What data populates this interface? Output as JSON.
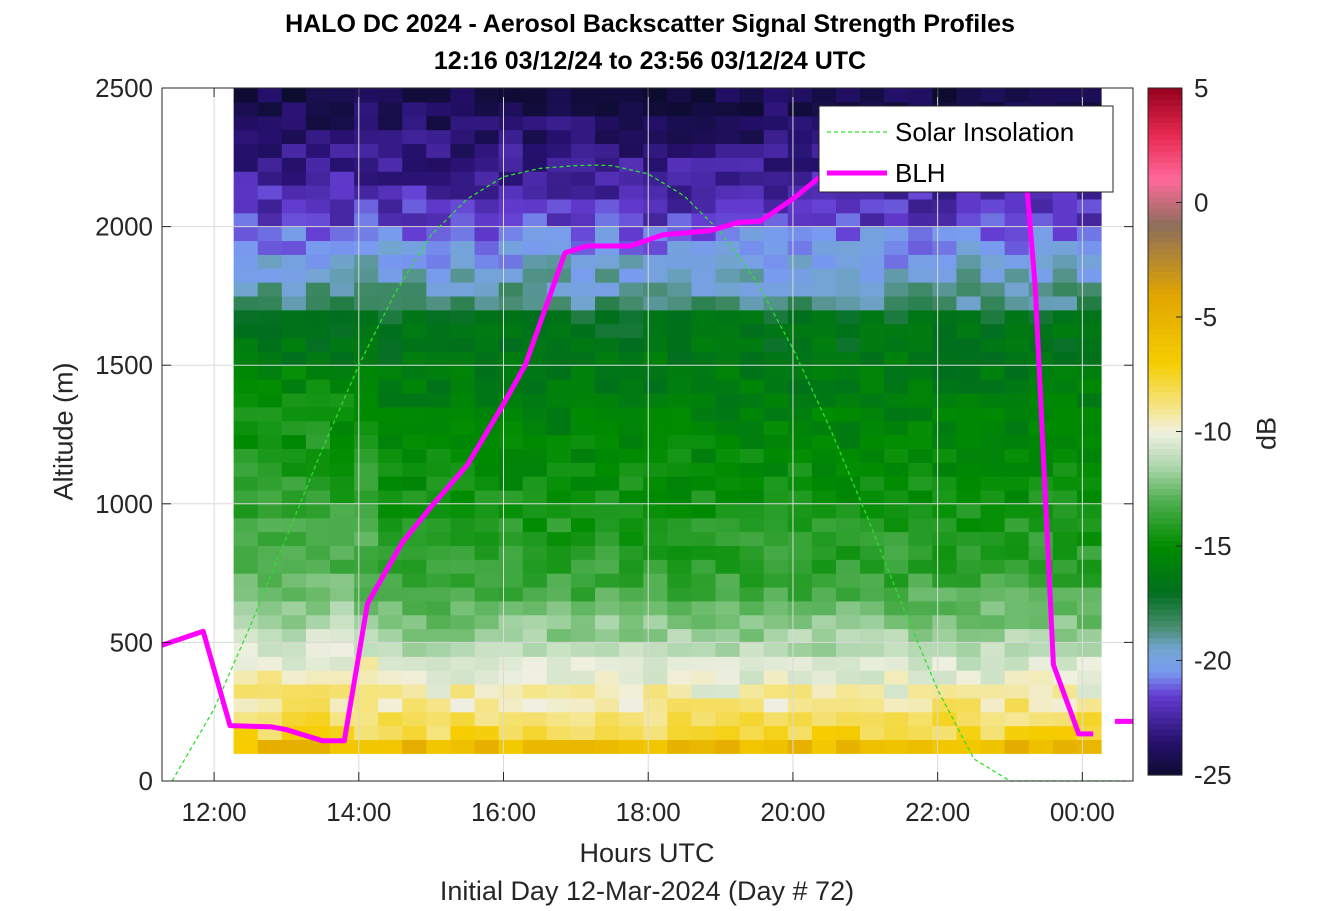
{
  "chart_data": {
    "type": "heatmap",
    "title": "HALO DC 2024 - Aerosol Backscatter Signal Strength Profiles",
    "subtitle": "12:16 03/12/24 to 23:56 03/12/24  UTC",
    "xlabel": "Hours UTC",
    "xlabel2": "Initial Day 12-Mar-2024 (Day # 72)",
    "ylabel": "Altitude (m)",
    "xlim": [
      11.28,
      24.7
    ],
    "ylim": [
      0,
      2500
    ],
    "x_ticks": [
      12,
      14,
      16,
      18,
      20,
      22,
      24
    ],
    "x_tick_labels": [
      "12:00",
      "14:00",
      "16:00",
      "18:00",
      "20:00",
      "22:00",
      "00:00"
    ],
    "y_ticks": [
      0,
      500,
      1000,
      1500,
      2000,
      2500
    ],
    "y_tick_labels": [
      "0",
      "500",
      "1000",
      "1500",
      "2000",
      "2500"
    ],
    "grid": true,
    "legend_position": "top-right",
    "heatmap": {
      "x_start": 12.27,
      "x_end": 23.93,
      "bin_hours": 0.333,
      "altitude_min": 100,
      "altitude_max": 2500,
      "altitude_bin_m": 50,
      "value_units": "dB"
    },
    "colorbar": {
      "label": "dB",
      "range": [
        -25,
        5
      ],
      "ticks": [
        5,
        0,
        -5,
        -10,
        -15,
        -20,
        -25
      ],
      "tick_labels": [
        "5",
        "0",
        "-5",
        "-10",
        "-15",
        "-20",
        "-25"
      ]
    },
    "series": [
      {
        "name": "Solar Insolation",
        "color": "#2ee02e",
        "style": "dashed",
        "x": [
          11.42,
          12.0,
          12.5,
          13.0,
          13.5,
          14.0,
          14.5,
          15.0,
          15.5,
          16.0,
          16.5,
          17.0,
          17.3,
          17.5,
          18.0,
          18.5,
          19.0,
          19.5,
          20.0,
          20.5,
          21.0,
          21.5,
          22.0,
          22.5,
          23.0,
          23.2,
          24.6
        ],
        "y": [
          0,
          260,
          560,
          880,
          1200,
          1500,
          1760,
          1970,
          2100,
          2180,
          2210,
          2220,
          2222,
          2220,
          2190,
          2110,
          1980,
          1800,
          1560,
          1280,
          970,
          640,
          330,
          80,
          0,
          0,
          0
        ]
      },
      {
        "name": "BLH",
        "color": "#ff00ff",
        "style": "solid",
        "x": [
          11.28,
          11.85,
          12.22,
          12.8,
          13.0,
          13.5,
          13.8,
          14.12,
          14.6,
          15.0,
          15.5,
          16.0,
          16.3,
          16.85,
          17.15,
          17.75,
          18.2,
          18.85,
          19.25,
          19.55,
          20.0,
          20.4,
          20.8,
          21.5,
          22.2,
          22.8,
          23.2,
          23.35,
          23.6,
          23.95,
          24.15
        ],
        "y": [
          490,
          540,
          200,
          195,
          185,
          145,
          145,
          640,
          860,
          990,
          1140,
          1360,
          1500,
          1905,
          1930,
          1930,
          1970,
          1985,
          2015,
          2020,
          2100,
          2185,
          2245,
          2255,
          2300,
          2390,
          2250,
          1780,
          420,
          170,
          170
        ]
      },
      {
        "name": "BLH-tail",
        "color": "#ff00ff",
        "style": "solid",
        "x": [
          24.45,
          24.7
        ],
        "y": [
          215,
          215
        ]
      }
    ]
  }
}
